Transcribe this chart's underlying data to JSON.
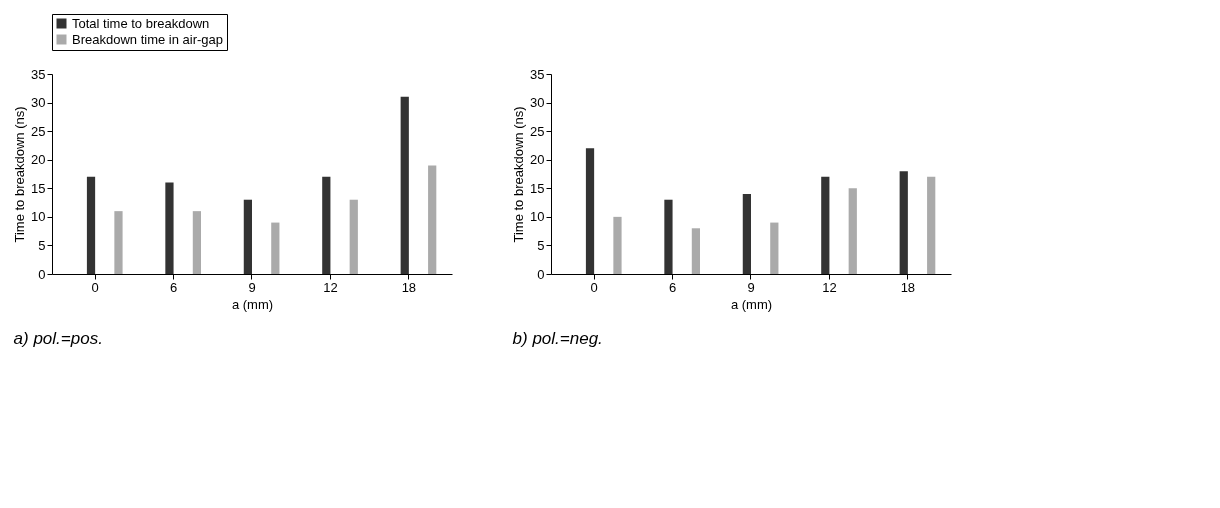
{
  "chart_data": [
    {
      "type": "bar",
      "title": "a) pol.=pos.",
      "xlabel": "a (mm)",
      "ylabel": "Time to breakdown (ns)",
      "categories": [
        "0",
        "6",
        "9",
        "12",
        "18"
      ],
      "series": [
        {
          "name": "Total time to breakdown",
          "color": "#333333",
          "values": [
            17,
            16,
            13,
            17,
            31
          ]
        },
        {
          "name": "Breakdown time in air-gap",
          "color": "#aaaaaa",
          "values": [
            11,
            11,
            9,
            13,
            19
          ]
        }
      ],
      "ylim": [
        0,
        35
      ],
      "yticks": [
        0,
        5,
        10,
        15,
        20,
        25,
        30,
        35
      ],
      "legend": "top",
      "grid": false
    },
    {
      "type": "bar",
      "title": "b) pol.=neg.",
      "xlabel": "a (mm)",
      "ylabel": "Time to breakdown (ns)",
      "categories": [
        "0",
        "6",
        "9",
        "12",
        "18"
      ],
      "series": [
        {
          "name": "Total time to breakdown",
          "color": "#333333",
          "values": [
            22,
            13,
            14,
            17,
            18
          ]
        },
        {
          "name": "Breakdown time in air-gap",
          "color": "#aaaaaa",
          "values": [
            10,
            8,
            9,
            15,
            17
          ]
        }
      ],
      "ylim": [
        0,
        35
      ],
      "yticks": [
        0,
        5,
        10,
        15,
        20,
        25,
        30,
        35
      ],
      "legend": "top",
      "grid": false
    }
  ]
}
